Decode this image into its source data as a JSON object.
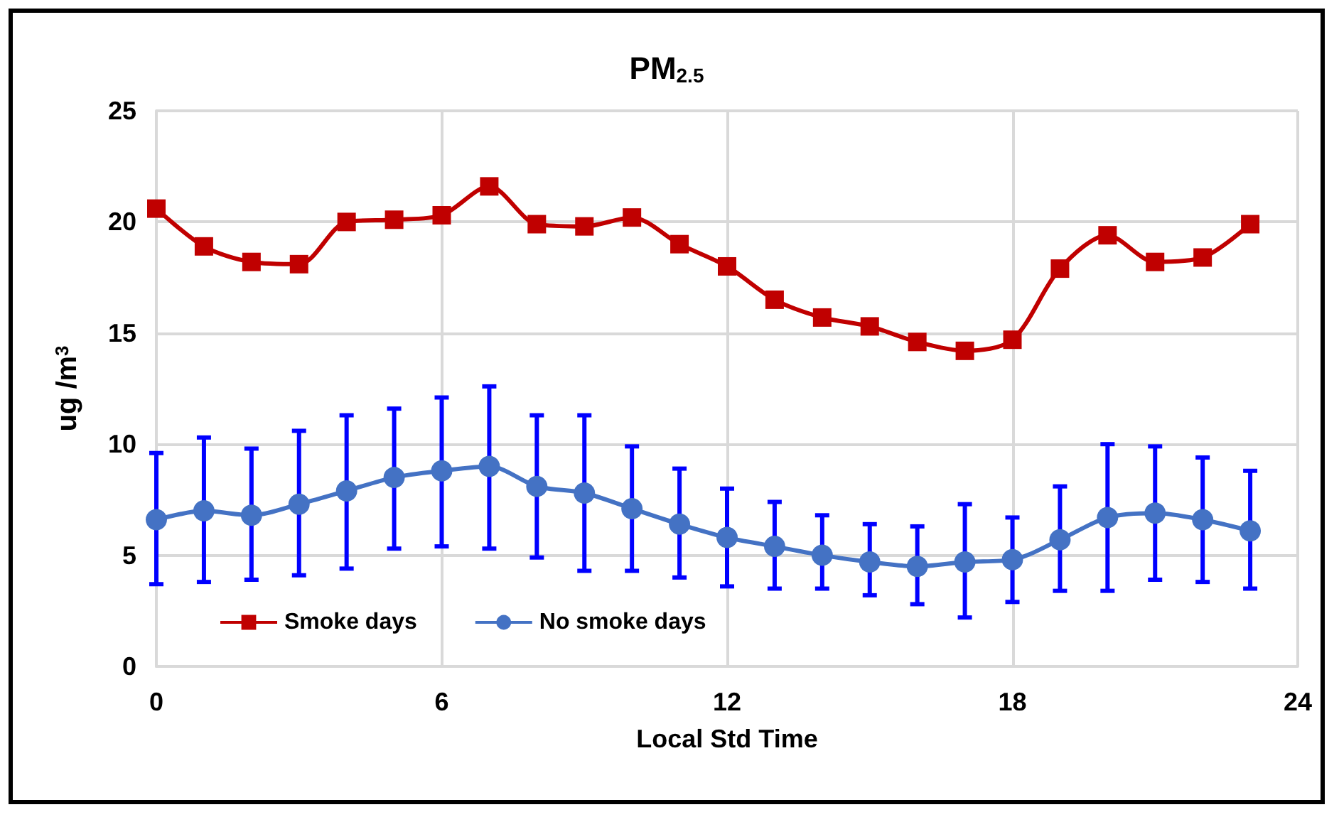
{
  "chart_data": {
    "type": "line",
    "title": "PM$_{2.5}$",
    "xlabel": "Local Std Time",
    "ylabel": "ug /m$^{3}$",
    "x": [
      0,
      1,
      2,
      3,
      4,
      5,
      6,
      7,
      8,
      9,
      10,
      11,
      12,
      13,
      14,
      15,
      16,
      17,
      18,
      19,
      20,
      21,
      22,
      23
    ],
    "series": [
      {
        "name": "Smoke days",
        "color": "#c00000",
        "marker": "square",
        "values": [
          20.6,
          18.9,
          18.2,
          18.1,
          20.0,
          20.1,
          20.3,
          21.6,
          19.9,
          19.8,
          20.2,
          19.0,
          18.0,
          16.5,
          15.7,
          15.3,
          14.6,
          14.2,
          14.7,
          17.9,
          19.4,
          18.2,
          18.4,
          19.9
        ]
      },
      {
        "name": "No smoke days",
        "color": "#4472c4",
        "marker": "circle",
        "values": [
          6.6,
          7.0,
          6.8,
          7.3,
          7.9,
          8.5,
          8.8,
          9.0,
          8.1,
          7.8,
          7.1,
          6.4,
          5.8,
          5.4,
          5.0,
          4.7,
          4.5,
          4.7,
          4.8,
          5.7,
          6.7,
          6.9,
          6.6,
          6.1
        ],
        "errors": [
          [
            3.7,
            9.6
          ],
          [
            3.8,
            10.3
          ],
          [
            3.9,
            9.8
          ],
          [
            4.1,
            10.6
          ],
          [
            4.4,
            11.3
          ],
          [
            5.3,
            11.6
          ],
          [
            5.4,
            12.1
          ],
          [
            5.3,
            12.6
          ],
          [
            4.9,
            11.3
          ],
          [
            4.3,
            11.3
          ],
          [
            4.3,
            9.9
          ],
          [
            4.0,
            8.9
          ],
          [
            3.6,
            8.0
          ],
          [
            3.5,
            7.4
          ],
          [
            3.5,
            6.8
          ],
          [
            3.2,
            6.4
          ],
          [
            2.8,
            6.3
          ],
          [
            2.2,
            7.3
          ],
          [
            2.9,
            6.7
          ],
          [
            3.4,
            8.1
          ],
          [
            3.4,
            10.0
          ],
          [
            3.9,
            9.9
          ],
          [
            3.8,
            9.4
          ],
          [
            3.5,
            8.8
          ]
        ]
      }
    ],
    "xlim": [
      0,
      24
    ],
    "xticks": [
      0,
      6,
      12,
      18,
      24
    ],
    "ylim": [
      0,
      25
    ],
    "yticks": [
      0,
      5,
      10,
      15,
      20,
      25
    ],
    "grid": true,
    "legend": "bottom left",
    "line_style": "solid"
  }
}
